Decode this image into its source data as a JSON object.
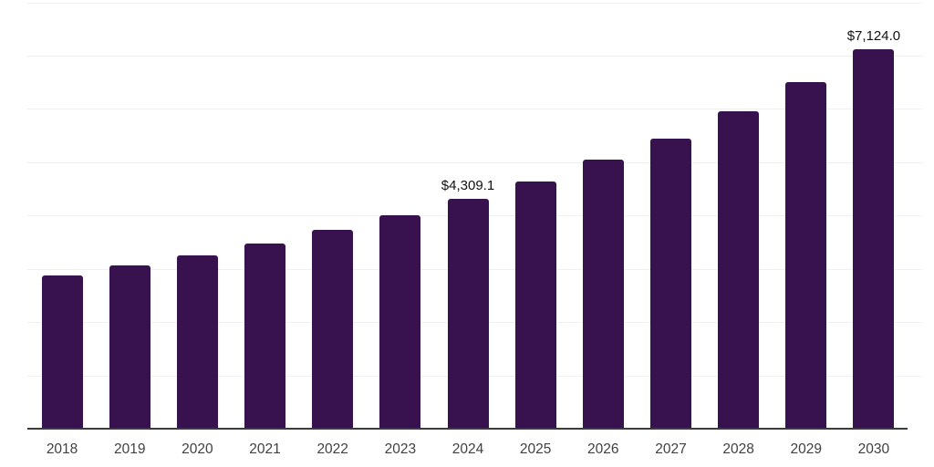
{
  "chart_data": {
    "type": "bar",
    "title": "",
    "xlabel": "",
    "ylabel": "",
    "categories": [
      "2018",
      "2019",
      "2020",
      "2021",
      "2022",
      "2023",
      "2024",
      "2025",
      "2026",
      "2027",
      "2028",
      "2029",
      "2030"
    ],
    "values": [
      2880,
      3060,
      3245,
      3470,
      3735,
      4005,
      4309.1,
      4645,
      5040,
      5445,
      5955,
      6500,
      7124.0
    ],
    "value_labels": [
      "",
      "",
      "",
      "",
      "",
      "",
      "$4,309.1",
      "",
      "",
      "",
      "",
      "",
      "$7,124.0"
    ],
    "ylim": [
      0,
      8000
    ],
    "gridline_step": 1000,
    "grid": "horizontal",
    "legend_position": "none",
    "colors": {
      "bar_fill": "#37124E",
      "gridline": "#f1f1f1",
      "axis_line": "#3c3c3c",
      "tick_label_text": "#414141",
      "value_label_text": "#111111"
    }
  }
}
